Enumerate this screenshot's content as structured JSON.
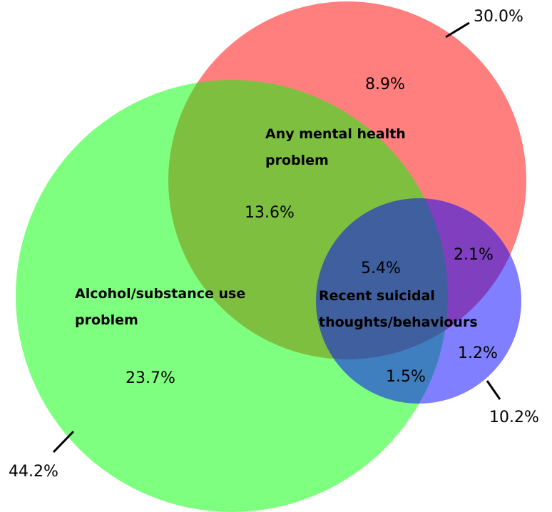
{
  "sets": [
    {
      "label": [
        "Any mental health",
        "problem"
      ],
      "total": "30.0%",
      "color": "rgba(255,0,0,0.5)"
    },
    {
      "label": [
        "Alcohol/substance use",
        "problem"
      ],
      "total": "44.2%",
      "color": "rgba(0,255,0,0.5)"
    },
    {
      "label": [
        "Recent suicidal",
        "thoughts/behaviours"
      ],
      "total": "10.2%",
      "color": "rgba(0,0,255,0.5)"
    }
  ],
  "regions": {
    "mental_only": "8.9%",
    "mental_alcohol": "13.6%",
    "alcohol_only": "23.7%",
    "all_three": "5.4%",
    "mental_suicidal": "2.1%",
    "suicidal_only": "1.2%",
    "alcohol_suicidal": "1.5%"
  }
}
